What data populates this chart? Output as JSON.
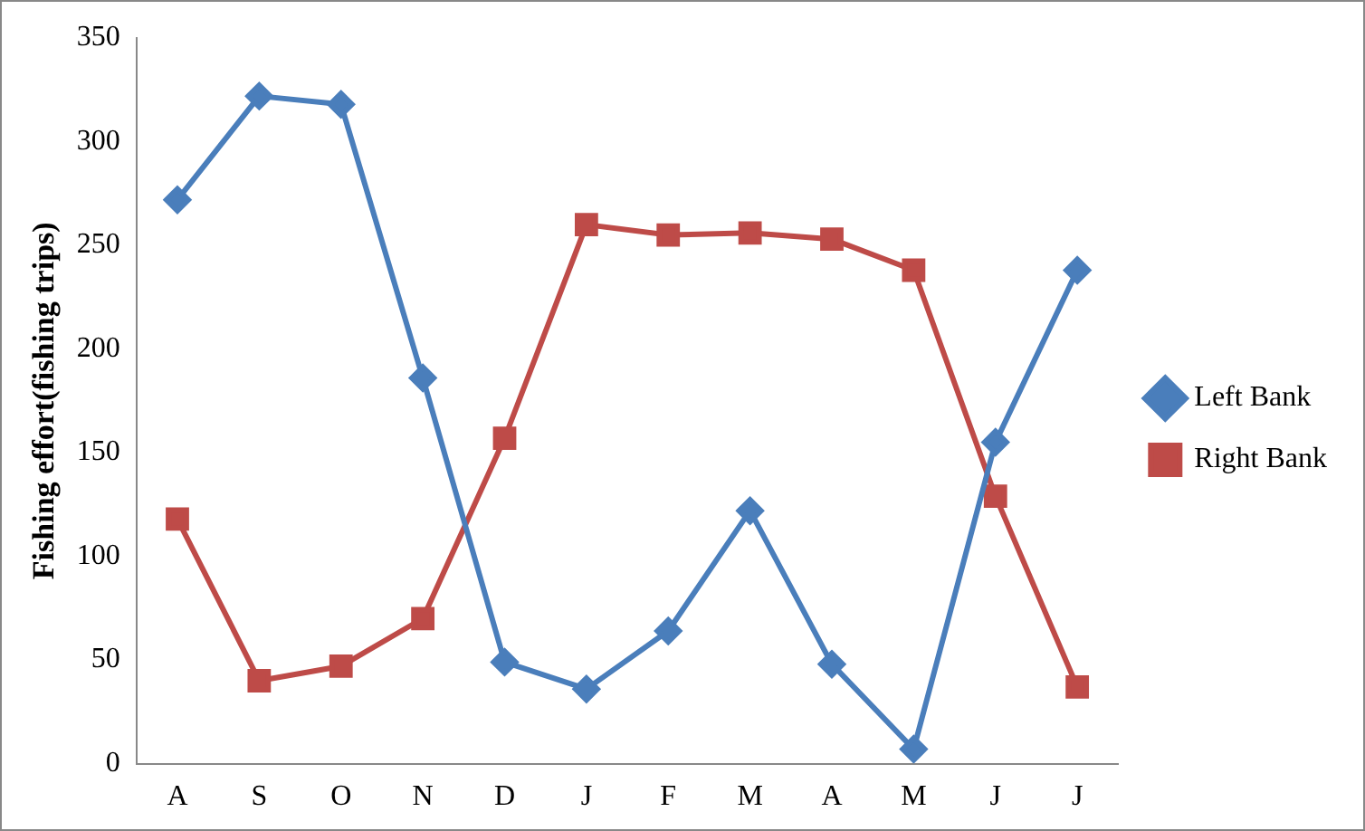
{
  "chart_data": {
    "type": "line",
    "ylabel": "Fishing effort(fishing trips)",
    "categories": [
      "A",
      "S",
      "O",
      "N",
      "D",
      "J",
      "F",
      "M",
      "A",
      "M",
      "J",
      "J"
    ],
    "series": [
      {
        "name": "Left Bank",
        "color": "#4a7ebb",
        "marker": "diamond",
        "values": [
          272,
          322,
          318,
          186,
          49,
          36,
          64,
          122,
          48,
          7,
          155,
          238
        ]
      },
      {
        "name": "Right Bank",
        "color": "#be4b48",
        "marker": "square",
        "values": [
          118,
          40,
          47,
          70,
          157,
          260,
          255,
          256,
          253,
          238,
          129,
          37
        ]
      }
    ],
    "ylim": [
      0,
      350
    ],
    "yticks": [
      0,
      50,
      100,
      150,
      200,
      250,
      300,
      350
    ],
    "grid": false,
    "legend": "right",
    "line_style": "solid"
  }
}
